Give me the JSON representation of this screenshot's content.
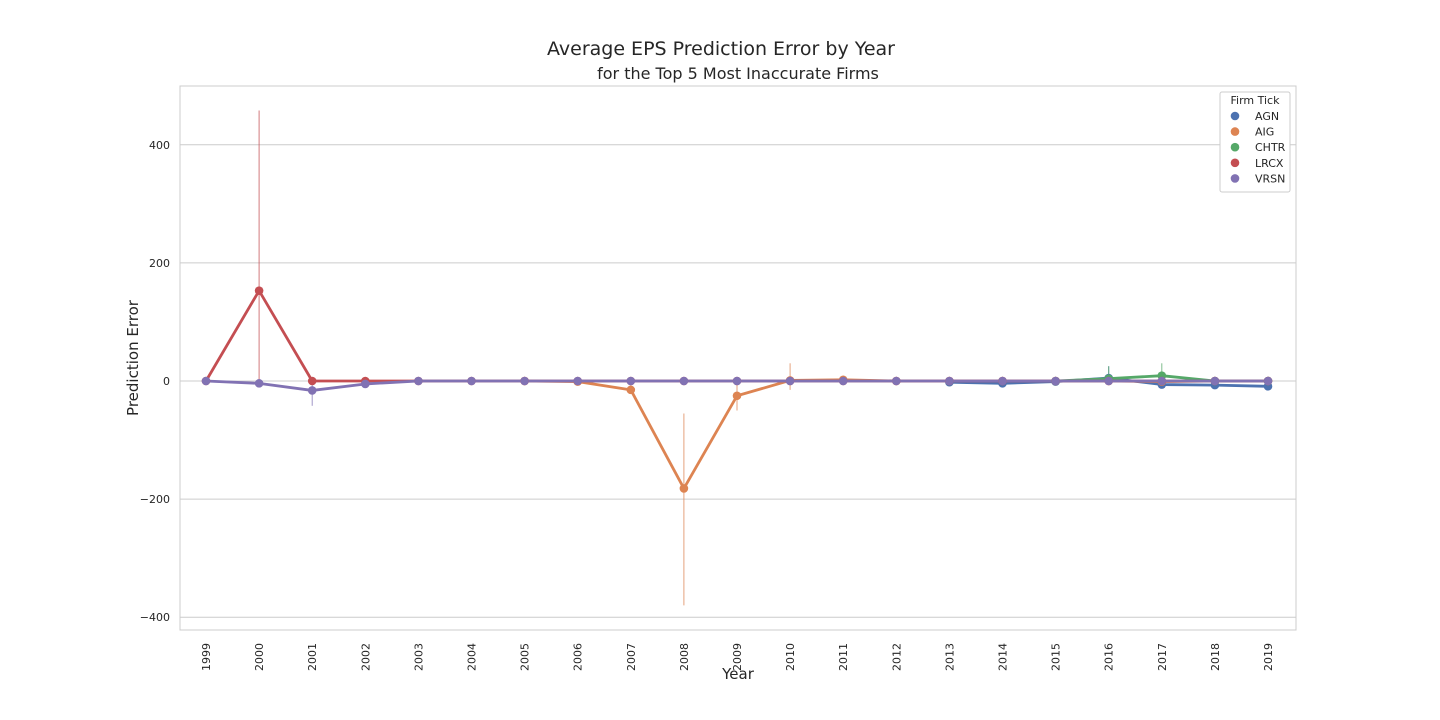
{
  "chart_data": {
    "type": "line",
    "title": "Average EPS Prediction Error by Year",
    "subtitle": "for the Top 5 Most Inaccurate Firms",
    "xlabel": "Year",
    "ylabel": "Prediction Error",
    "ylim": [
      -420,
      500
    ],
    "yticks": [
      400,
      200,
      0,
      -200,
      -400
    ],
    "ytick_labels": [
      "400",
      "200",
      "0",
      "−200",
      "−400"
    ],
    "grid": "horizontal",
    "legend_title": "Firm Tick",
    "legend_position": "top-right",
    "categories": [
      "1999",
      "2000",
      "2001",
      "2002",
      "2003",
      "2004",
      "2005",
      "2006",
      "2007",
      "2008",
      "2009",
      "2010",
      "2011",
      "2012",
      "2013",
      "2014",
      "2015",
      "2016",
      "2017",
      "2018",
      "2019"
    ],
    "series": [
      {
        "name": "AGN",
        "color": "#4c72b0",
        "values": [
          null,
          null,
          null,
          null,
          null,
          null,
          null,
          null,
          null,
          null,
          null,
          null,
          null,
          null,
          -2,
          -4,
          -1,
          5,
          -6,
          -7,
          -9
        ],
        "ci": [
          null,
          null,
          null,
          null,
          null,
          null,
          null,
          null,
          null,
          null,
          null,
          null,
          null,
          null,
          null,
          null,
          null,
          [
            -5,
            25
          ],
          null,
          null,
          null
        ]
      },
      {
        "name": "AIG",
        "color": "#dd8452",
        "values": [
          null,
          null,
          null,
          null,
          null,
          null,
          0,
          -1,
          -15,
          -182,
          -25,
          1,
          2,
          0,
          0,
          0,
          0,
          0,
          -1,
          0,
          0
        ],
        "ci": [
          null,
          null,
          null,
          null,
          null,
          null,
          null,
          null,
          null,
          [
            -380,
            -55
          ],
          [
            -50,
            -5
          ],
          [
            -15,
            30
          ],
          null,
          null,
          null,
          null,
          null,
          null,
          null,
          null,
          null
        ]
      },
      {
        "name": "CHTR",
        "color": "#55a868",
        "values": [
          null,
          null,
          null,
          null,
          null,
          null,
          null,
          null,
          null,
          null,
          null,
          null,
          null,
          null,
          null,
          null,
          0,
          4,
          9,
          0,
          0
        ],
        "ci": [
          null,
          null,
          null,
          null,
          null,
          null,
          null,
          null,
          null,
          null,
          null,
          null,
          null,
          null,
          null,
          null,
          null,
          [
            -5,
            25
          ],
          [
            -5,
            30
          ],
          null,
          null
        ]
      },
      {
        "name": "LRCX",
        "color": "#c44e52",
        "values": [
          0,
          153,
          0,
          0,
          0,
          0,
          0,
          0,
          0,
          0,
          0,
          0,
          0,
          0,
          0,
          0,
          0,
          0,
          0,
          0,
          0
        ],
        "ci": [
          null,
          [
            0,
            458
          ],
          null,
          null,
          null,
          null,
          null,
          null,
          null,
          null,
          null,
          null,
          null,
          null,
          null,
          null,
          null,
          null,
          null,
          null,
          null
        ]
      },
      {
        "name": "VRSN",
        "color": "#8172b3",
        "values": [
          0,
          -4,
          -16,
          -5,
          0,
          0,
          0,
          0,
          0,
          0,
          0,
          0,
          0,
          0,
          0,
          0,
          0,
          0,
          0,
          0,
          0
        ],
        "ci": [
          null,
          null,
          [
            -42,
            -5
          ],
          null,
          null,
          null,
          null,
          null,
          null,
          null,
          null,
          null,
          null,
          null,
          null,
          null,
          null,
          null,
          null,
          null,
          null
        ]
      }
    ]
  }
}
